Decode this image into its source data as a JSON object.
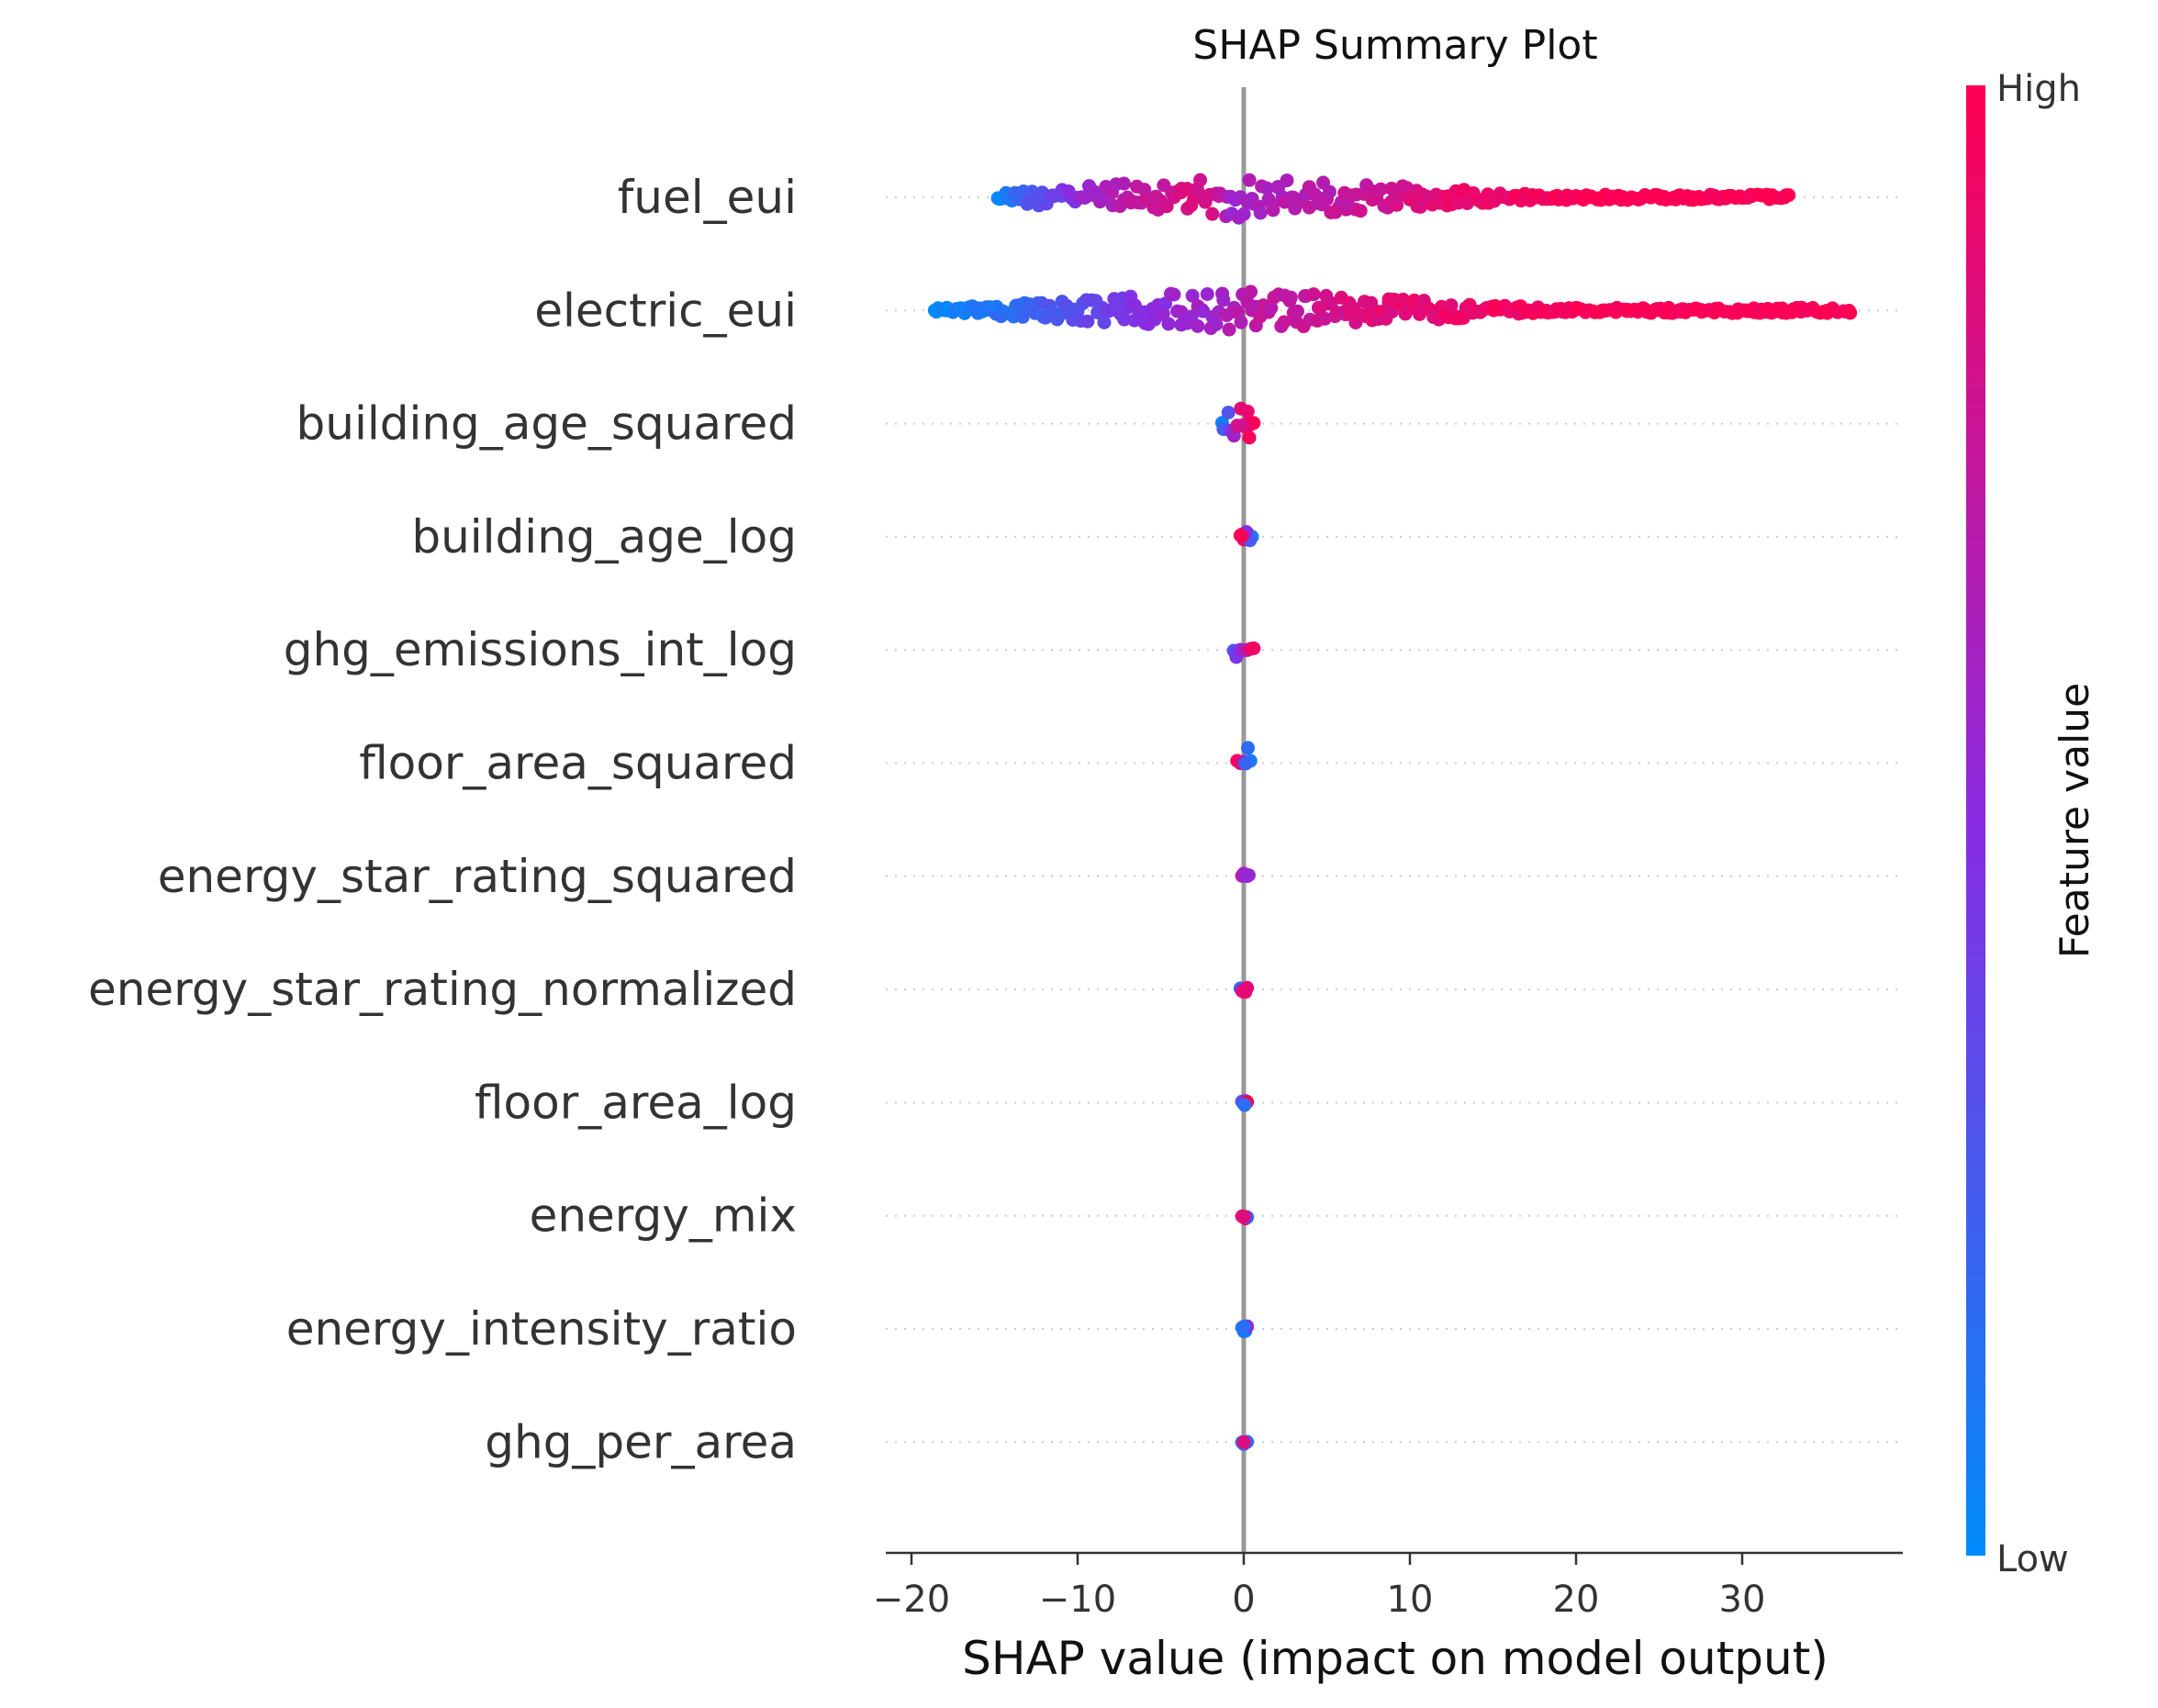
{
  "chart_data": {
    "type": "scatter",
    "subtype": "shap-summary-beeswarm",
    "title": "SHAP Summary Plot",
    "xlabel": "SHAP value (impact on model output)",
    "ylabel": "",
    "xlim": [
      -21,
      39
    ],
    "xticks": [
      -20,
      -10,
      0,
      10,
      20,
      30
    ],
    "xtick_labels": [
      "−20",
      "−10",
      "0",
      "10",
      "20",
      "30"
    ],
    "grid": false,
    "zero_line": true,
    "colorbar": {
      "label": "Feature value",
      "high_label": "High",
      "low_label": "Low",
      "low_color": "#008bfb",
      "mid_color": "#8a2be2",
      "high_color": "#ff0052"
    },
    "features": [
      {
        "name": "fuel_eui",
        "points": [
          [
            -14.8,
            0
          ],
          [
            -14.5,
            0
          ],
          [
            -14.2,
            0.1
          ],
          [
            -13.5,
            0.2
          ],
          [
            -12.5,
            0.3
          ],
          [
            -11.4,
            0.4
          ],
          [
            -10.0,
            0.5
          ],
          [
            -8.5,
            0.6
          ],
          [
            -7.0,
            0.7
          ],
          [
            -5.6,
            0.75
          ],
          [
            -4.2,
            0.8
          ],
          [
            -3.0,
            0.85
          ],
          [
            -2.2,
            0.8
          ],
          [
            -1.5,
            0.75
          ],
          [
            -1.0,
            0.7
          ],
          [
            -0.8,
            0.6
          ],
          [
            -0.5,
            0.55
          ],
          [
            -0.2,
            0.6
          ],
          [
            0.5,
            0.62
          ],
          [
            1.5,
            0.64
          ],
          [
            3.0,
            0.68
          ],
          [
            5.0,
            0.72
          ],
          [
            6.5,
            0.75
          ],
          [
            8.0,
            0.8
          ],
          [
            10.0,
            0.84
          ],
          [
            12.0,
            0.88
          ],
          [
            14.0,
            0.92
          ],
          [
            16.0,
            0.94
          ],
          [
            18.0,
            0.96
          ],
          [
            20.0,
            0.98
          ],
          [
            22.0,
            1
          ],
          [
            23.5,
            1
          ],
          [
            24.5,
            1
          ],
          [
            26.0,
            1
          ],
          [
            27.5,
            1
          ],
          [
            28.5,
            1
          ],
          [
            29.2,
            1
          ],
          [
            31.8,
            1
          ],
          [
            32.8,
            1
          ]
        ]
      },
      {
        "name": "electric_eui",
        "points": [
          [
            -18.6,
            0
          ],
          [
            -17.5,
            0.05
          ],
          [
            -16.0,
            0.1
          ],
          [
            -14.5,
            0.15
          ],
          [
            -13.0,
            0.2
          ],
          [
            -11.5,
            0.25
          ],
          [
            -10.0,
            0.3
          ],
          [
            -8.5,
            0.38
          ],
          [
            -7.0,
            0.45
          ],
          [
            -5.5,
            0.5
          ],
          [
            -4.0,
            0.55
          ],
          [
            -2.5,
            0.6
          ],
          [
            -1.5,
            0.6
          ],
          [
            -0.5,
            0.65
          ],
          [
            0.5,
            0.7
          ],
          [
            1.5,
            0.72
          ],
          [
            3.0,
            0.75
          ],
          [
            4.5,
            0.78
          ],
          [
            6.0,
            0.82
          ],
          [
            8.0,
            0.86
          ],
          [
            10.0,
            0.88
          ],
          [
            12.0,
            0.9
          ],
          [
            14.0,
            0.92
          ],
          [
            16.0,
            0.94
          ],
          [
            18.0,
            0.96
          ],
          [
            20.0,
            0.98
          ],
          [
            23.5,
            1
          ],
          [
            25.0,
            1
          ],
          [
            27.5,
            1
          ],
          [
            29.5,
            1
          ],
          [
            36.5,
            1
          ]
        ]
      },
      {
        "name": "building_age_squared",
        "points": [
          [
            -1.3,
            0.05
          ],
          [
            -0.4,
            0.8
          ],
          [
            0,
            0.9
          ],
          [
            0.2,
            0.85
          ],
          [
            0.4,
            0.95
          ],
          [
            0.6,
            1
          ],
          [
            0.1,
            0.9
          ],
          [
            -0.2,
            0.8
          ]
        ]
      },
      {
        "name": "building_age_log",
        "points": [
          [
            -0.1,
            1
          ],
          [
            0,
            0.95
          ],
          [
            0.1,
            0.9
          ],
          [
            0.5,
            0.05
          ],
          [
            -0.2,
            1
          ]
        ]
      },
      {
        "name": "ghg_emissions_int_log",
        "points": [
          [
            -0.6,
            0.3
          ],
          [
            -0.2,
            0.5
          ],
          [
            0,
            0.6
          ],
          [
            0.2,
            0.7
          ],
          [
            0.4,
            0.85
          ],
          [
            0.6,
            0.95
          ]
        ]
      },
      {
        "name": "floor_area_squared",
        "points": [
          [
            -0.4,
            1
          ],
          [
            -0.2,
            0.9
          ],
          [
            0,
            0.7
          ],
          [
            0.2,
            0.4
          ],
          [
            0.4,
            0.1
          ],
          [
            0.1,
            0.2
          ]
        ]
      },
      {
        "name": "energy_star_rating_squared",
        "points": [
          [
            -0.1,
            0.7
          ],
          [
            0,
            0.65
          ],
          [
            0.1,
            0.6
          ],
          [
            0.2,
            0.5
          ],
          [
            0.3,
            0.55
          ]
        ]
      },
      {
        "name": "energy_star_rating_normalized",
        "points": [
          [
            -0.2,
            0.2
          ],
          [
            -0.1,
            0.8
          ],
          [
            0,
            0.85
          ],
          [
            0.1,
            0.9
          ],
          [
            0.2,
            0.88
          ]
        ]
      },
      {
        "name": "floor_area_log",
        "points": [
          [
            -0.1,
            0.3
          ],
          [
            0,
            0.2
          ],
          [
            0.1,
            0.35
          ],
          [
            0.2,
            1
          ],
          [
            0.05,
            0.15
          ]
        ]
      },
      {
        "name": "energy_mix",
        "points": [
          [
            -0.1,
            0.95
          ],
          [
            0,
            0.9
          ],
          [
            0.1,
            0.95
          ],
          [
            0.2,
            0.3
          ],
          [
            0,
            0.85
          ]
        ]
      },
      {
        "name": "energy_intensity_ratio",
        "points": [
          [
            -0.1,
            0.05
          ],
          [
            0,
            0.1
          ],
          [
            0.1,
            0.08
          ],
          [
            0.2,
            0.5
          ],
          [
            0,
            0.15
          ]
        ]
      },
      {
        "name": "ghg_per_area",
        "points": [
          [
            -0.1,
            0.1
          ],
          [
            0,
            0.15
          ],
          [
            0.1,
            0.9
          ],
          [
            0.2,
            0.2
          ],
          [
            0,
            0.85
          ]
        ]
      }
    ]
  }
}
